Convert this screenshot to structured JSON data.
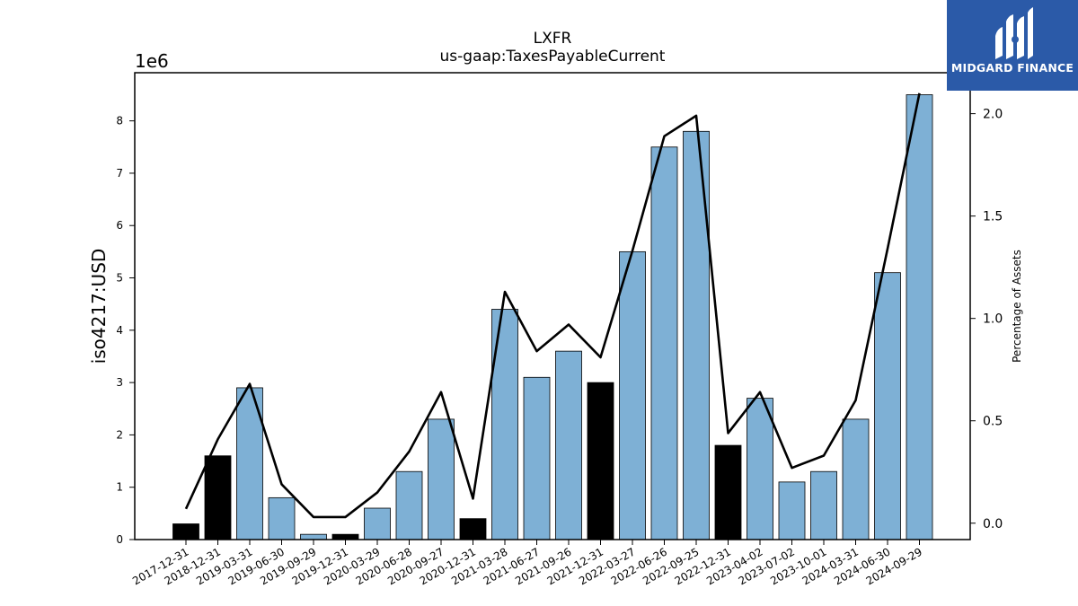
{
  "chart_data": {
    "type": "bar",
    "title": "LXFR",
    "subtitle": "us-gaap:TaxesPayableCurrent",
    "ylabel": "iso4217:USD",
    "y2label": "Percentage of Assets",
    "y_offset_label": "1e6",
    "ylim": [
      0,
      8.92
    ],
    "y2lim": [
      -0.08,
      2.2
    ],
    "yticks": [
      0,
      1,
      2,
      3,
      4,
      5,
      6,
      7,
      8
    ],
    "y2ticks": [
      "0.0",
      "0.5",
      "1.0",
      "1.5",
      "2.0"
    ],
    "categories": [
      "2017-12-31",
      "2018-12-31",
      "2019-03-31",
      "2019-06-30",
      "2019-09-29",
      "2019-12-31",
      "2020-03-29",
      "2020-06-28",
      "2020-09-27",
      "2020-12-31",
      "2021-03-28",
      "2021-06-27",
      "2021-09-26",
      "2021-12-31",
      "2022-03-27",
      "2022-06-26",
      "2022-09-25",
      "2022-12-31",
      "2023-04-02",
      "2023-07-02",
      "2023-10-01",
      "2024-03-31",
      "2024-06-30",
      "2024-09-29"
    ],
    "series": [
      {
        "values": [
          0.3,
          1.6,
          2.9,
          0.8,
          0.1,
          0.1,
          0.6,
          1.3,
          2.3,
          0.4,
          4.4,
          3.1,
          3.6,
          3.0,
          5.5,
          7.5,
          7.8,
          1.8,
          2.7,
          1.1,
          1.3,
          2.3,
          5.1,
          8.5
        ],
        "colors": [
          "#000000",
          "#000000",
          "#7eb0d5",
          "#7eb0d5",
          "#7eb0d5",
          "#000000",
          "#7eb0d5",
          "#7eb0d5",
          "#7eb0d5",
          "#000000",
          "#7eb0d5",
          "#7eb0d5",
          "#7eb0d5",
          "#000000",
          "#7eb0d5",
          "#7eb0d5",
          "#7eb0d5",
          "#000000",
          "#7eb0d5",
          "#7eb0d5",
          "#7eb0d5",
          "#7eb0d5",
          "#7eb0d5",
          "#7eb0d5"
        ]
      },
      {
        "axis": "right",
        "type": "line",
        "values": [
          0.07,
          0.41,
          0.68,
          0.19,
          0.03,
          0.03,
          0.15,
          0.35,
          0.64,
          0.12,
          1.13,
          0.84,
          0.97,
          0.81,
          1.33,
          1.89,
          1.99,
          0.44,
          0.64,
          0.27,
          0.33,
          0.6,
          1.34,
          2.1
        ],
        "color": "#000000"
      }
    ]
  },
  "logo": {
    "text": "MIDGARD FINANCE"
  }
}
